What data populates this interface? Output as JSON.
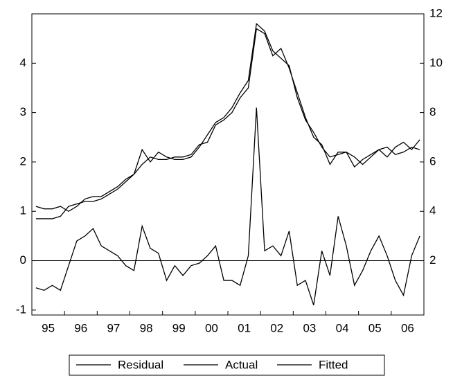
{
  "chart_data": {
    "type": "line",
    "categories": [
      null,
      "95",
      null,
      null,
      null,
      "96",
      null,
      null,
      null,
      "97",
      null,
      null,
      null,
      "98",
      null,
      null,
      null,
      "99",
      null,
      null,
      null,
      "00",
      null,
      null,
      null,
      "01",
      null,
      null,
      null,
      "02",
      null,
      null,
      null,
      "03",
      null,
      null,
      null,
      "04",
      null,
      null,
      null,
      "05",
      null,
      null,
      null,
      "06",
      null,
      null
    ],
    "series": [
      {
        "name": "Residual",
        "color": "#000000",
        "values": [
          -0.55,
          -0.6,
          -0.5,
          -0.6,
          -0.1,
          0.4,
          0.5,
          0.65,
          0.3,
          0.2,
          0.1,
          -0.1,
          -0.2,
          0.7,
          0.25,
          0.15,
          -0.4,
          -0.1,
          -0.3,
          -0.1,
          -0.05,
          0.1,
          0.3,
          -0.4,
          -0.4,
          -0.5,
          0.1,
          3.1,
          0.2,
          0.3,
          0.1,
          0.6,
          -0.5,
          -0.4,
          -0.9,
          0.2,
          -0.3,
          0.9,
          0.3,
          -0.5,
          -0.2,
          0.2,
          0.5,
          0.1,
          -0.4,
          -0.7,
          0.1,
          0.5
        ]
      },
      {
        "name": "Actual",
        "color": "#000000",
        "axis": "y2",
        "values": [
          4.2,
          4.1,
          4.1,
          4.2,
          4.0,
          4.2,
          4.5,
          4.6,
          4.6,
          4.8,
          5.0,
          5.3,
          5.5,
          6.5,
          6.0,
          6.4,
          6.2,
          6.1,
          6.1,
          6.2,
          6.6,
          7.1,
          7.6,
          7.8,
          8.2,
          8.8,
          9.3,
          11.6,
          11.3,
          10.5,
          10.2,
          9.9,
          8.6,
          7.7,
          7.2,
          6.6,
          6.2,
          6.3,
          6.4,
          5.8,
          6.1,
          6.3,
          6.5,
          6.2,
          6.6,
          6.8,
          6.5,
          6.9
        ]
      },
      {
        "name": "Fitted",
        "color": "#000000",
        "axis": "y2",
        "values": [
          3.7,
          3.7,
          3.7,
          3.8,
          4.2,
          4.3,
          4.4,
          4.4,
          4.5,
          4.7,
          4.9,
          5.2,
          5.5,
          5.9,
          6.2,
          6.1,
          6.1,
          6.2,
          6.2,
          6.3,
          6.7,
          6.8,
          7.5,
          7.7,
          8.0,
          8.6,
          9.0,
          11.4,
          11.2,
          10.3,
          10.6,
          9.8,
          8.8,
          7.8,
          7.0,
          6.7,
          5.9,
          6.4,
          6.4,
          6.2,
          5.9,
          6.2,
          6.5,
          6.6,
          6.3,
          6.4,
          6.6,
          6.5
        ]
      }
    ],
    "ylim": [
      -1.1,
      5
    ],
    "yticks": [
      -1,
      0,
      1,
      2,
      3,
      4
    ],
    "y2lim": [
      -0.2,
      12
    ],
    "y2ticks": [
      2,
      4,
      6,
      8,
      10,
      12
    ],
    "legend": "bottom"
  }
}
